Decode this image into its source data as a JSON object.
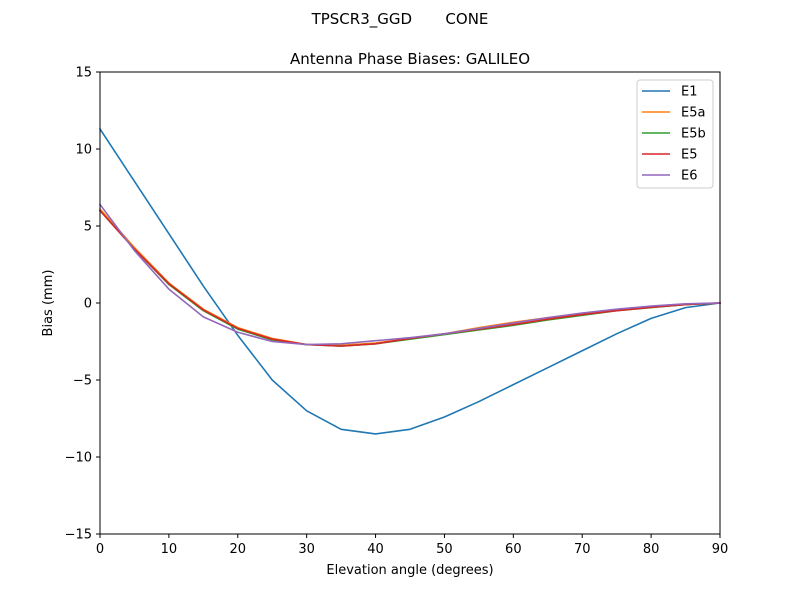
{
  "figure": {
    "suptitle": "TPSCR3_GGD       CONE"
  },
  "chart_data": {
    "type": "line",
    "title": "Antenna Phase Biases: GALILEO",
    "xlabel": "Elevation angle (degrees)",
    "ylabel": "Bias (mm)",
    "xlim": [
      0,
      90
    ],
    "ylim": [
      -15,
      15
    ],
    "x_ticks": [
      0,
      10,
      20,
      30,
      40,
      50,
      60,
      70,
      80,
      90
    ],
    "y_ticks": [
      -15,
      -10,
      -5,
      0,
      5,
      10,
      15
    ],
    "x_tick_labels": [
      "0",
      "10",
      "20",
      "30",
      "40",
      "50",
      "60",
      "70",
      "80",
      "90"
    ],
    "y_tick_labels": [
      "−15",
      "−10",
      "−5",
      "0",
      "5",
      "10",
      "15"
    ],
    "grid": false,
    "legend_position": "top-right",
    "x": [
      0,
      5,
      10,
      15,
      20,
      25,
      30,
      35,
      40,
      45,
      50,
      55,
      60,
      65,
      70,
      75,
      80,
      85,
      90
    ],
    "series": [
      {
        "name": "E1",
        "color": "#1f77b4",
        "values": [
          11.3,
          7.9,
          4.5,
          1.1,
          -2.1,
          -5.0,
          -7.0,
          -8.2,
          -8.5,
          -8.2,
          -7.4,
          -6.4,
          -5.3,
          -4.2,
          -3.1,
          -2.0,
          -1.0,
          -0.3,
          0.0
        ]
      },
      {
        "name": "E5a",
        "color": "#ff7f0e",
        "values": [
          6.1,
          3.6,
          1.3,
          -0.4,
          -1.6,
          -2.3,
          -2.7,
          -2.75,
          -2.6,
          -2.3,
          -2.0,
          -1.6,
          -1.25,
          -0.95,
          -0.7,
          -0.45,
          -0.25,
          -0.1,
          0.0
        ]
      },
      {
        "name": "E5b",
        "color": "#2ca02c",
        "values": [
          6.0,
          3.5,
          1.2,
          -0.5,
          -1.7,
          -2.4,
          -2.7,
          -2.8,
          -2.65,
          -2.35,
          -2.05,
          -1.75,
          -1.45,
          -1.1,
          -0.8,
          -0.5,
          -0.3,
          -0.1,
          0.0
        ]
      },
      {
        "name": "E5",
        "color": "#d62728",
        "values": [
          6.0,
          3.5,
          1.25,
          -0.45,
          -1.65,
          -2.35,
          -2.7,
          -2.8,
          -2.65,
          -2.3,
          -2.0,
          -1.7,
          -1.4,
          -1.05,
          -0.75,
          -0.5,
          -0.28,
          -0.1,
          0.0
        ]
      },
      {
        "name": "E6",
        "color": "#9467bd",
        "values": [
          6.4,
          3.4,
          0.9,
          -0.9,
          -1.9,
          -2.5,
          -2.7,
          -2.65,
          -2.45,
          -2.25,
          -2.0,
          -1.65,
          -1.3,
          -0.95,
          -0.65,
          -0.4,
          -0.2,
          -0.05,
          0.0
        ]
      }
    ]
  }
}
